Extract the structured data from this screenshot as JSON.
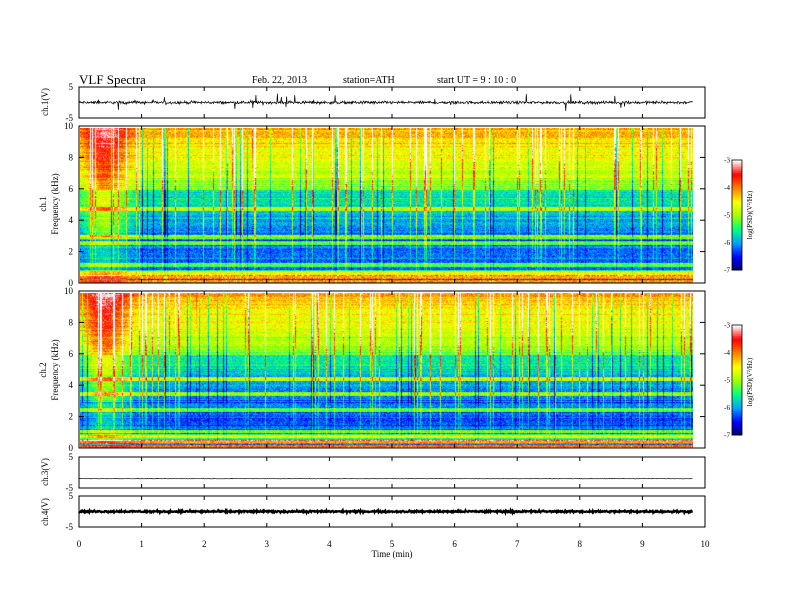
{
  "header": {
    "title": "VLF  Spectra",
    "date": "Feb. 22, 2013",
    "station": "station=ATH",
    "start": "start  UT  =   9  : 10 : 0"
  },
  "chart_data": [
    {
      "type": "line",
      "name": "ch1-waveform",
      "ylabel": "ch.1(V)",
      "ylim": [
        -5,
        5
      ],
      "yticks": [
        "5",
        "-5"
      ],
      "xlim": [
        0,
        10
      ],
      "signal_baseline": 0,
      "signal_amplitude": 0.8,
      "spike_amplitude": 2.5
    },
    {
      "type": "heatmap",
      "name": "ch1-spectrogram",
      "channel_label": "ch.1",
      "ylabel": "Frequency  (kHz)",
      "ylim": [
        0,
        10
      ],
      "yticks": [
        "0",
        "2",
        "4",
        "6",
        "8",
        "10"
      ],
      "xlim": [
        0,
        10
      ],
      "data_end_min": 9.8,
      "colorbar": {
        "label": "log(PSD)(V²/Hz)",
        "range": [
          -7,
          -3
        ],
        "ticks": [
          "-3",
          "-4",
          "-5",
          "-6",
          "-7"
        ],
        "colors": [
          "#000060",
          "#0000ff",
          "#00a0ff",
          "#00ff80",
          "#a0ff00",
          "#ffff00",
          "#ff8000",
          "#ff0000",
          "#ffffff"
        ]
      },
      "bands_khz": [
        0.1,
        0.4,
        0.7,
        1.2,
        2.6,
        3.0,
        4.8
      ]
    },
    {
      "type": "heatmap",
      "name": "ch2-spectrogram",
      "channel_label": "ch.2",
      "ylabel": "Frequency  (kHz)",
      "ylim": [
        0,
        10
      ],
      "yticks": [
        "0",
        "2",
        "4",
        "6",
        "8",
        "10"
      ],
      "xlim": [
        0,
        10
      ],
      "data_end_min": 9.8,
      "colorbar": {
        "label": "log(PSD)(V²/Hz)",
        "range": [
          -7,
          -3
        ],
        "ticks": [
          "-3",
          "-4",
          "-5",
          "-6",
          "-7"
        ],
        "colors": [
          "#000060",
          "#0000ff",
          "#00a0ff",
          "#00ff80",
          "#a0ff00",
          "#ffff00",
          "#ff8000",
          "#ff0000",
          "#ffffff"
        ]
      },
      "bands_khz": [
        0.1,
        0.4,
        0.8,
        1.1,
        2.5,
        3.5,
        4.5
      ]
    },
    {
      "type": "line",
      "name": "ch3-waveform",
      "ylabel": "ch.3(V)",
      "ylim": [
        -5,
        5
      ],
      "yticks": [
        "5",
        "-5"
      ],
      "xlim": [
        0,
        10
      ],
      "signal_baseline": -2,
      "signal_amplitude": 0.1
    },
    {
      "type": "line",
      "name": "ch4-waveform",
      "ylabel": "ch.4(V)",
      "ylim": [
        -5,
        5
      ],
      "yticks": [
        "5",
        "-5"
      ],
      "xlim": [
        0,
        10
      ],
      "xlabel": "Time  (min)",
      "xticks": [
        "0",
        "1",
        "2",
        "3",
        "4",
        "5",
        "6",
        "7",
        "8",
        "9",
        "10"
      ],
      "signal_baseline": 0,
      "signal_amplitude": 0.5
    }
  ]
}
